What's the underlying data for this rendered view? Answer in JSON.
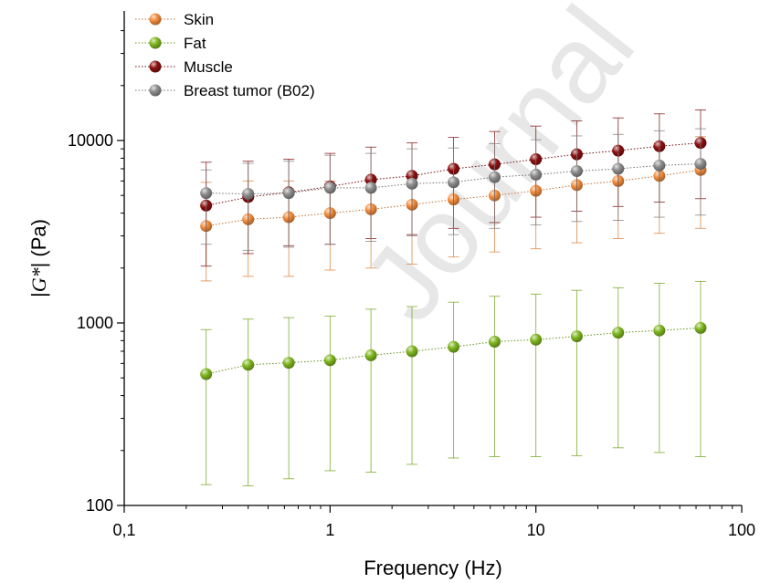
{
  "chart_data": {
    "type": "scatter",
    "xlabel": "Frequency (Hz)",
    "ylabel_parts": [
      "|",
      "G*",
      "| (Pa)"
    ],
    "x_scale": "log",
    "y_scale": "log",
    "xlim": [
      0.1,
      100
    ],
    "ylim": [
      100,
      50000
    ],
    "x_ticks": [
      {
        "value": 0.1,
        "label": "0,1"
      },
      {
        "value": 1,
        "label": "1"
      },
      {
        "value": 10,
        "label": "10"
      },
      {
        "value": 100,
        "label": "100"
      }
    ],
    "y_ticks": [
      {
        "value": 100,
        "label": "100"
      },
      {
        "value": 1000,
        "label": "1000"
      },
      {
        "value": 10000,
        "label": "10000"
      }
    ],
    "grid": false,
    "legend_position": "top-left",
    "watermark": "Journal",
    "x": [
      0.25,
      0.4,
      0.63,
      1.0,
      1.58,
      2.5,
      3.98,
      6.3,
      10,
      15.8,
      25.1,
      39.8,
      63.1
    ],
    "series": [
      {
        "name": "Skin",
        "color": "#F28C3C",
        "values": [
          3400,
          3700,
          3800,
          4000,
          4200,
          4450,
          4750,
          5000,
          5300,
          5700,
          6000,
          6400,
          6900
        ],
        "err_low": [
          1700,
          1800,
          1800,
          1950,
          2000,
          2100,
          2300,
          2450,
          2550,
          2750,
          2900,
          3100,
          3300
        ],
        "err_high": [
          5900,
          6000,
          6000,
          6000,
          6300,
          6600,
          7100,
          7600,
          8000,
          8500,
          9000,
          9700,
          10500
        ]
      },
      {
        "name": "Fat",
        "color": "#7DB51E",
        "values": [
          525,
          590,
          605,
          625,
          665,
          700,
          740,
          790,
          810,
          845,
          885,
          910,
          940
        ],
        "err_low": [
          130,
          128,
          140,
          155,
          152,
          168,
          182,
          185,
          185,
          187,
          207,
          195,
          185
        ],
        "err_high": [
          920,
          1050,
          1070,
          1090,
          1190,
          1230,
          1300,
          1400,
          1440,
          1510,
          1560,
          1650,
          1690
        ]
      },
      {
        "name": "Muscle",
        "color": "#8B1010",
        "values": [
          4400,
          4900,
          5200,
          5600,
          6100,
          6400,
          7000,
          7400,
          7900,
          8400,
          8800,
          9300,
          9700
        ],
        "err_low": [
          2050,
          2400,
          2650,
          2700,
          2900,
          3050,
          3300,
          3550,
          3800,
          4100,
          4350,
          4600,
          4800
        ],
        "err_high": [
          7600,
          7700,
          7900,
          8500,
          9200,
          9700,
          10400,
          11200,
          12000,
          12800,
          13300,
          14000,
          14700
        ]
      },
      {
        "name": "Breast tumor (B02)",
        "color": "#8C8C8C",
        "values": [
          5150,
          5100,
          5150,
          5500,
          5500,
          5800,
          5900,
          6300,
          6500,
          6800,
          7000,
          7300,
          7450
        ],
        "err_low": [
          2700,
          2500,
          2600,
          2700,
          2800,
          3000,
          3050,
          3300,
          3450,
          3600,
          3650,
          3800,
          3900
        ],
        "err_high": [
          6900,
          7500,
          7700,
          8300,
          8500,
          9000,
          9100,
          9600,
          10100,
          10600,
          10800,
          11300,
          11600
        ]
      }
    ]
  }
}
